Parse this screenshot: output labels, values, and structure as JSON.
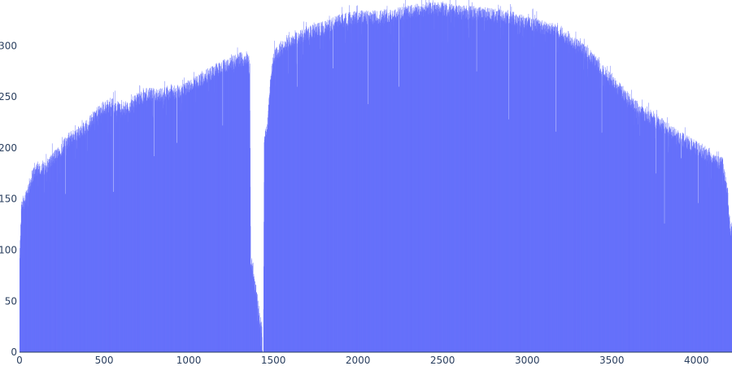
{
  "chart_data": {
    "type": "bar",
    "title": "",
    "xlabel": "",
    "ylabel": "",
    "bar_color": "#636efa",
    "xlim": [
      0,
      4210
    ],
    "ylim": [
      0,
      345
    ],
    "grid": false,
    "legend": "none",
    "x_ticks": [
      0,
      500,
      1000,
      1500,
      2000,
      2500,
      3000,
      3500,
      4000
    ],
    "y_ticks": [
      0,
      50,
      100,
      150,
      200,
      250,
      300
    ],
    "x_tick_labels": [
      "0",
      "500",
      "1000",
      "1500",
      "2000",
      "2500",
      "3000",
      "3500",
      "4000"
    ],
    "y_tick_labels": [
      "0",
      "50",
      "100",
      "150",
      "200",
      "250",
      "300"
    ],
    "envelope": [
      [
        0,
        90
      ],
      [
        10,
        140
      ],
      [
        30,
        150
      ],
      [
        50,
        160
      ],
      [
        80,
        175
      ],
      [
        100,
        180
      ],
      [
        150,
        180
      ],
      [
        200,
        190
      ],
      [
        250,
        200
      ],
      [
        300,
        210
      ],
      [
        350,
        215
      ],
      [
        400,
        222
      ],
      [
        450,
        232
      ],
      [
        500,
        240
      ],
      [
        550,
        242
      ],
      [
        600,
        238
      ],
      [
        650,
        240
      ],
      [
        700,
        248
      ],
      [
        750,
        252
      ],
      [
        800,
        252
      ],
      [
        850,
        252
      ],
      [
        900,
        255
      ],
      [
        950,
        255
      ],
      [
        1000,
        260
      ],
      [
        1050,
        265
      ],
      [
        1100,
        270
      ],
      [
        1150,
        275
      ],
      [
        1200,
        280
      ],
      [
        1250,
        283
      ],
      [
        1300,
        287
      ],
      [
        1340,
        287
      ],
      [
        1355,
        285
      ],
      [
        1360,
        270
      ],
      [
        1365,
        88
      ],
      [
        1380,
        78
      ],
      [
        1400,
        55
      ],
      [
        1420,
        30
      ],
      [
        1430,
        24
      ],
      [
        1435,
        0
      ],
      [
        1440,
        0
      ],
      [
        1445,
        210
      ],
      [
        1460,
        215
      ],
      [
        1480,
        262
      ],
      [
        1500,
        290
      ],
      [
        1550,
        297
      ],
      [
        1600,
        305
      ],
      [
        1650,
        308
      ],
      [
        1700,
        312
      ],
      [
        1800,
        318
      ],
      [
        1900,
        325
      ],
      [
        2000,
        328
      ],
      [
        2100,
        328
      ],
      [
        2200,
        330
      ],
      [
        2300,
        333
      ],
      [
        2400,
        336
      ],
      [
        2500,
        336
      ],
      [
        2600,
        333
      ],
      [
        2700,
        332
      ],
      [
        2800,
        330
      ],
      [
        2900,
        328
      ],
      [
        3000,
        322
      ],
      [
        3100,
        318
      ],
      [
        3200,
        313
      ],
      [
        3300,
        300
      ],
      [
        3400,
        285
      ],
      [
        3500,
        265
      ],
      [
        3600,
        248
      ],
      [
        3700,
        232
      ],
      [
        3800,
        222
      ],
      [
        3900,
        210
      ],
      [
        4000,
        200
      ],
      [
        4050,
        193
      ],
      [
        4100,
        188
      ],
      [
        4150,
        185
      ],
      [
        4170,
        170
      ],
      [
        4185,
        150
      ],
      [
        4200,
        120
      ],
      [
        4210,
        120
      ]
    ],
    "dips": [
      [
        270,
        155
      ],
      [
        555,
        157
      ],
      [
        795,
        192
      ],
      [
        930,
        205
      ],
      [
        1200,
        222
      ],
      [
        1640,
        260
      ],
      [
        1850,
        278
      ],
      [
        2060,
        243
      ],
      [
        2240,
        260
      ],
      [
        2700,
        275
      ],
      [
        2890,
        228
      ],
      [
        3170,
        216
      ],
      [
        3440,
        215
      ],
      [
        3760,
        175
      ],
      [
        3810,
        126
      ],
      [
        3910,
        190
      ],
      [
        4010,
        146
      ]
    ]
  }
}
